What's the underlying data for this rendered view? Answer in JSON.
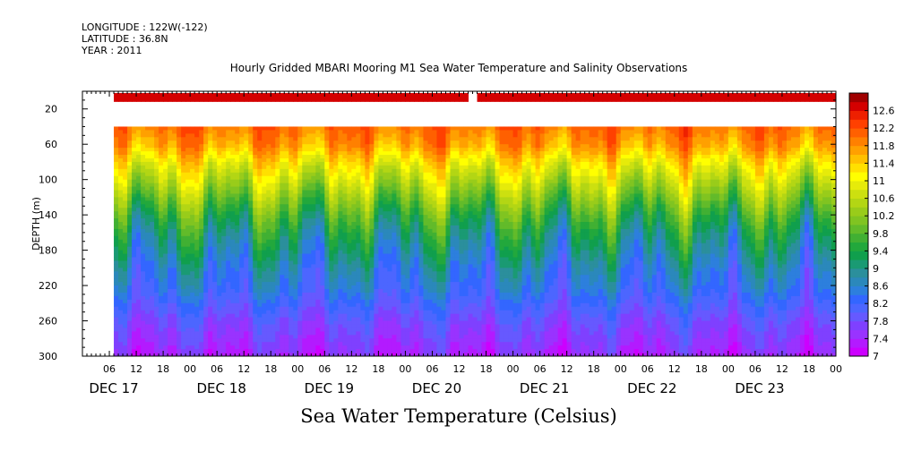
{
  "meta": {
    "longitude": "LONGITUDE : 122W(-122)",
    "latitude": "LATITUDE : 36.8N",
    "year": "YEAR : 2011"
  },
  "title": "Hourly Gridded MBARI Mooring M1 Sea Water Temperature and Salinity Observations",
  "bottom_title": "Sea Water Temperature (Celsius)",
  "chart_data": {
    "type": "heatmap",
    "title": "Hourly Gridded MBARI Mooring M1 Sea Water Temperature and Salinity Observations",
    "subtitle": "Sea Water Temperature (Celsius)",
    "ylabel": "DEPTH (m)",
    "xlabel": "",
    "y_inverted": true,
    "xlim_hours": [
      0,
      168
    ],
    "ylim": [
      0,
      300
    ],
    "y_ticks": [
      20,
      60,
      100,
      140,
      180,
      220,
      260,
      300
    ],
    "x_hour_ticks": [
      "06",
      "12",
      "18",
      "00",
      "06",
      "12",
      "18",
      "00",
      "06",
      "12",
      "18",
      "00",
      "06",
      "12",
      "18",
      "00",
      "06",
      "12",
      "18",
      "00",
      "06",
      "12",
      "18",
      "00",
      "06",
      "12",
      "18",
      "00"
    ],
    "x_day_labels": [
      "DEC 17",
      "DEC 18",
      "DEC 19",
      "DEC 20",
      "DEC 21",
      "DEC 22",
      "DEC 23"
    ],
    "colorbar": {
      "levels": [
        7.0,
        7.2,
        7.4,
        7.6,
        7.8,
        8.0,
        8.2,
        8.4,
        8.6,
        8.8,
        9.0,
        9.2,
        9.4,
        9.6,
        9.8,
        10.0,
        10.2,
        10.4,
        10.6,
        10.8,
        11.0,
        11.2,
        11.4,
        11.6,
        11.8,
        12.0,
        12.2,
        12.4,
        12.6,
        12.8
      ],
      "tick_labels": [
        "12.6",
        "12.2",
        "11.8",
        "11.4",
        "11",
        "10.6",
        "10.2",
        "9.8",
        "9.4",
        "9",
        "8.6",
        "8.2",
        "7.8",
        "7.4",
        "7"
      ],
      "colors": [
        "#cc00ff",
        "#b31aff",
        "#9933ff",
        "#7f40ff",
        "#6659ff",
        "#4c66ff",
        "#3366ff",
        "#2d7fdd",
        "#2b88bb",
        "#2b8f9c",
        "#1a9a73",
        "#109f4d",
        "#22a83c",
        "#41b033",
        "#62bb2a",
        "#80c421",
        "#99cc1a",
        "#b3d614",
        "#cce010",
        "#e6eb0a",
        "#ffff00",
        "#ffe000",
        "#ffc000",
        "#ffa000",
        "#ff8000",
        "#ff6000",
        "#ff4000",
        "#ee2000",
        "#d40000",
        "#a00000"
      ]
    },
    "depth_rows_m": [
      10,
      40,
      60,
      80,
      100,
      120,
      140,
      160,
      180,
      200,
      220,
      240,
      260,
      280,
      300
    ],
    "profile_temperature_c": [
      12.7,
      12.0,
      11.7,
      11.1,
      10.6,
      10.1,
      9.6,
      9.2,
      8.9,
      8.6,
      8.4,
      8.1,
      7.8,
      7.6,
      7.4
    ],
    "data_start_hour": 7,
    "gap_near_surface_hours": [
      86,
      88
    ]
  }
}
